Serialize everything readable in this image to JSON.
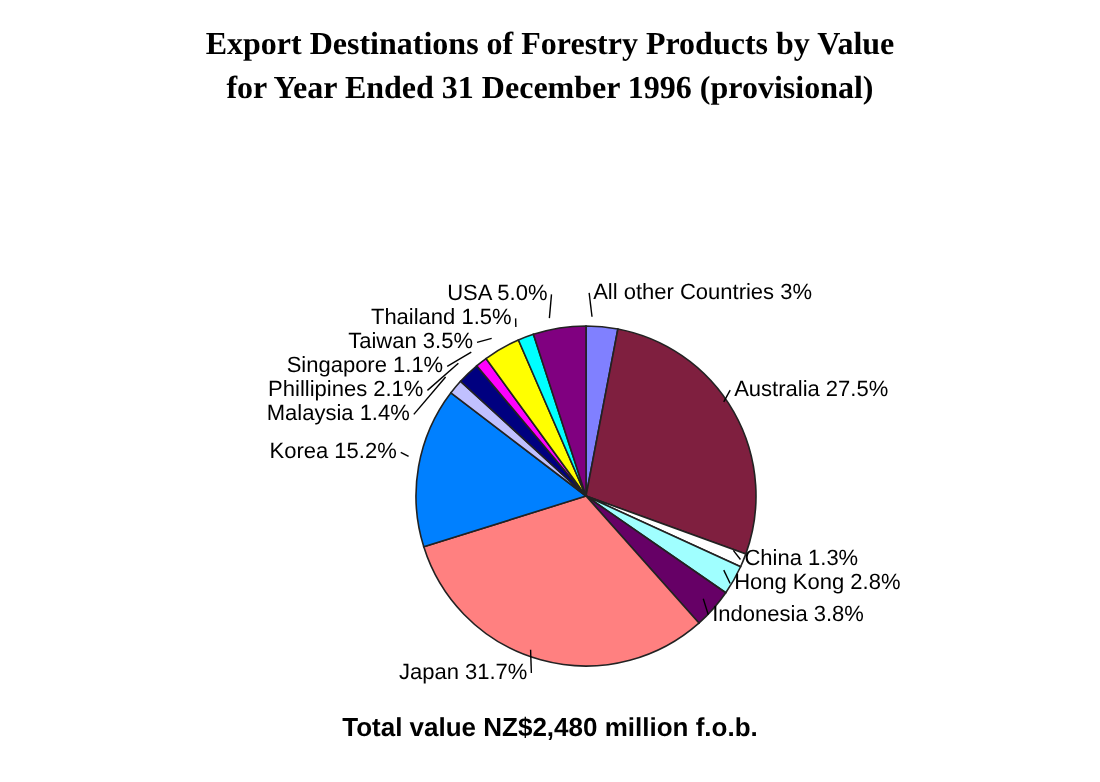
{
  "chart_data": {
    "type": "pie",
    "title": "Export Destinations of Forestry Products by Value\nfor Year Ended 31 December 1996 (provisional)",
    "categories": [
      "All other Countries",
      "Australia",
      "China",
      "Hong Kong",
      "Indonesia",
      "Japan",
      "Korea",
      "Malaysia",
      "Phillipines",
      "Singapore",
      "Taiwan",
      "Thailand",
      "USA"
    ],
    "values": [
      3,
      27.5,
      1.3,
      2.8,
      3.8,
      31.7,
      15.2,
      1.4,
      2.1,
      1.1,
      3.5,
      1.5,
      5.0
    ],
    "colors": [
      "#8080ff",
      "#7f1f3f",
      "#ffffff",
      "#a0ffff",
      "#660066",
      "#ff8080",
      "#0080ff",
      "#c0c0ff",
      "#000080",
      "#ff00ff",
      "#ffff00",
      "#00ffff",
      "#800080"
    ],
    "value_labels": [
      "3%",
      "27.5%",
      "1.3%",
      "2.8%",
      "3.8%",
      "31.7%",
      "15.2%",
      "1.4%",
      "2.1%",
      "1.1%",
      "3.5%",
      "1.5%",
      "5.0%"
    ],
    "legend": false,
    "annotations": [
      "Total value NZ$2,480 million f.o.b."
    ]
  }
}
